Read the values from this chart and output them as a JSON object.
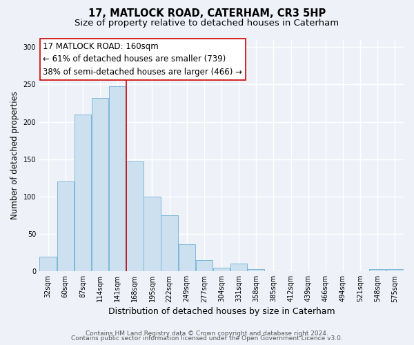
{
  "title": "17, MATLOCK ROAD, CATERHAM, CR3 5HP",
  "subtitle": "Size of property relative to detached houses in Caterham",
  "xlabel": "Distribution of detached houses by size in Caterham",
  "ylabel": "Number of detached properties",
  "bar_labels": [
    "32sqm",
    "60sqm",
    "87sqm",
    "114sqm",
    "141sqm",
    "168sqm",
    "195sqm",
    "222sqm",
    "249sqm",
    "277sqm",
    "304sqm",
    "331sqm",
    "358sqm",
    "385sqm",
    "412sqm",
    "439sqm",
    "466sqm",
    "494sqm",
    "521sqm",
    "548sqm",
    "575sqm"
  ],
  "bar_values": [
    20,
    120,
    210,
    232,
    248,
    147,
    100,
    75,
    36,
    15,
    5,
    10,
    3,
    0,
    0,
    0,
    0,
    0,
    0,
    3,
    3
  ],
  "bar_color": "#cce0f0",
  "bar_edge_color": "#7ab8d9",
  "vline_x_index": 4,
  "vline_color": "#cc0000",
  "annotation_text_line1": "17 MATLOCK ROAD: 160sqm",
  "annotation_text_line2": "← 61% of detached houses are smaller (739)",
  "annotation_text_line3": "38% of semi-detached houses are larger (466) →",
  "ylim": [
    0,
    310
  ],
  "yticks": [
    0,
    50,
    100,
    150,
    200,
    250,
    300
  ],
  "footer_line1": "Contains HM Land Registry data © Crown copyright and database right 2024.",
  "footer_line2": "Contains public sector information licensed under the Open Government Licence v3.0.",
  "background_color": "#eef2f8",
  "plot_bg_color": "#eef2f8",
  "grid_color": "#ffffff",
  "title_fontsize": 10.5,
  "subtitle_fontsize": 9.5,
  "xlabel_fontsize": 9,
  "ylabel_fontsize": 8.5,
  "tick_fontsize": 7,
  "annotation_fontsize": 8.5,
  "footer_fontsize": 6.5
}
